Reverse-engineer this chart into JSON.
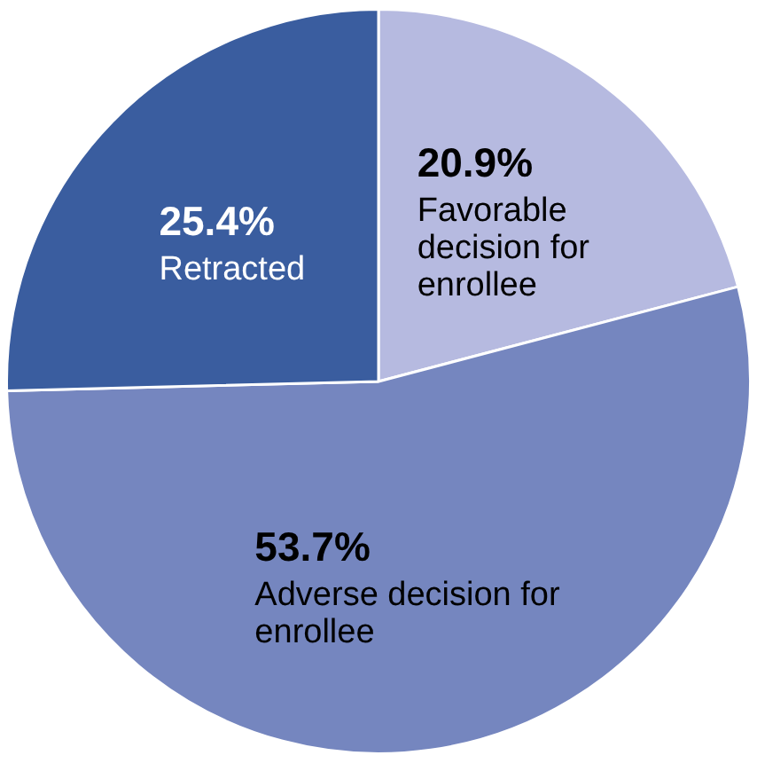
{
  "chart_data": {
    "type": "pie",
    "categories": [
      "Favorable decision for enrollee",
      "Adverse decision for enrollee",
      "Retracted"
    ],
    "values": [
      20.9,
      53.7,
      25.4
    ],
    "value_labels": [
      "20.9%",
      "53.7%",
      "25.4%"
    ],
    "colors": [
      "#b6bae0",
      "#7586bf",
      "#3a5d9f"
    ],
    "legend": false
  }
}
